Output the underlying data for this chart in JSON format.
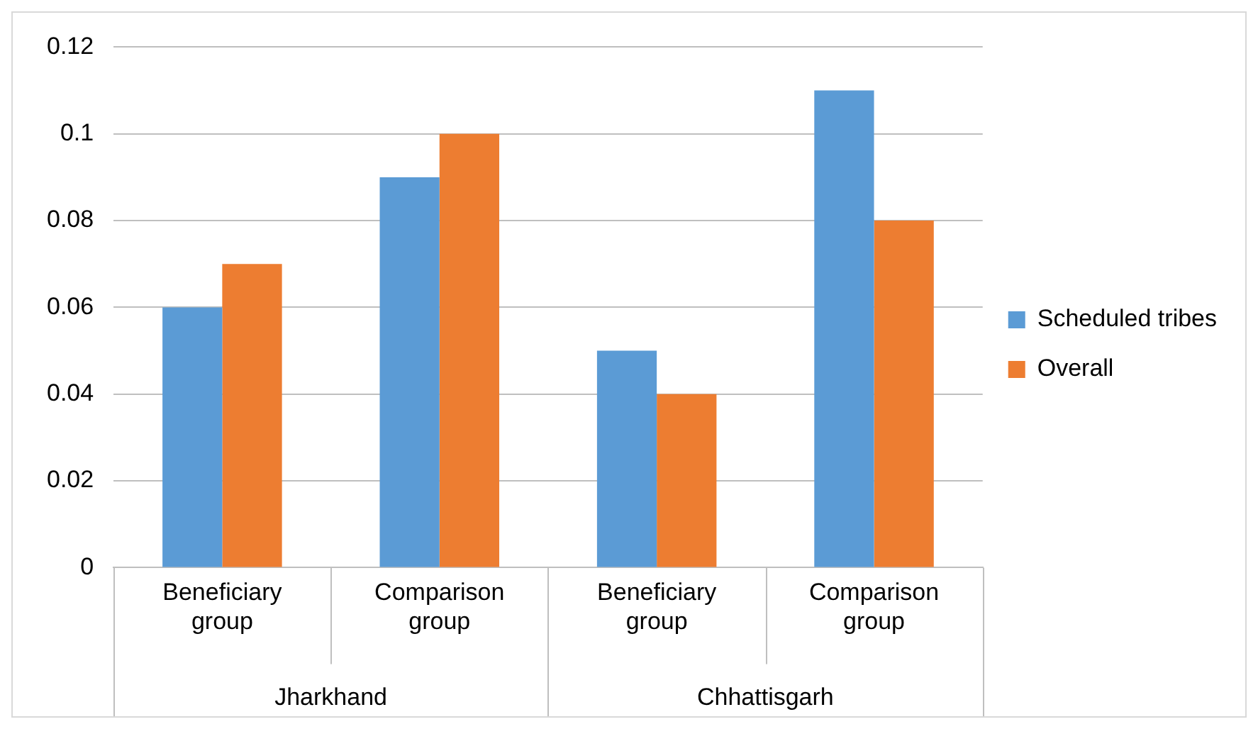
{
  "chart_data": {
    "type": "bar",
    "categories": [
      "Beneficiary group",
      "Comparison group",
      "Beneficiary group",
      "Comparison group"
    ],
    "series": [
      {
        "name": "Scheduled tribes",
        "color": "#5b9bd5",
        "values": [
          0.06,
          0.09,
          0.05,
          0.11
        ]
      },
      {
        "name": "Overall",
        "color": "#ed7d31",
        "values": [
          0.07,
          0.1,
          0.04,
          0.08
        ]
      }
    ],
    "annotations": [
      "Jharkhand",
      "Chhattisgarh"
    ],
    "ylim": [
      0,
      0.12
    ],
    "yticks": [
      0,
      0.02,
      0.04,
      0.06,
      0.08,
      0.1,
      0.12
    ],
    "grid": "y",
    "legend": "right"
  }
}
